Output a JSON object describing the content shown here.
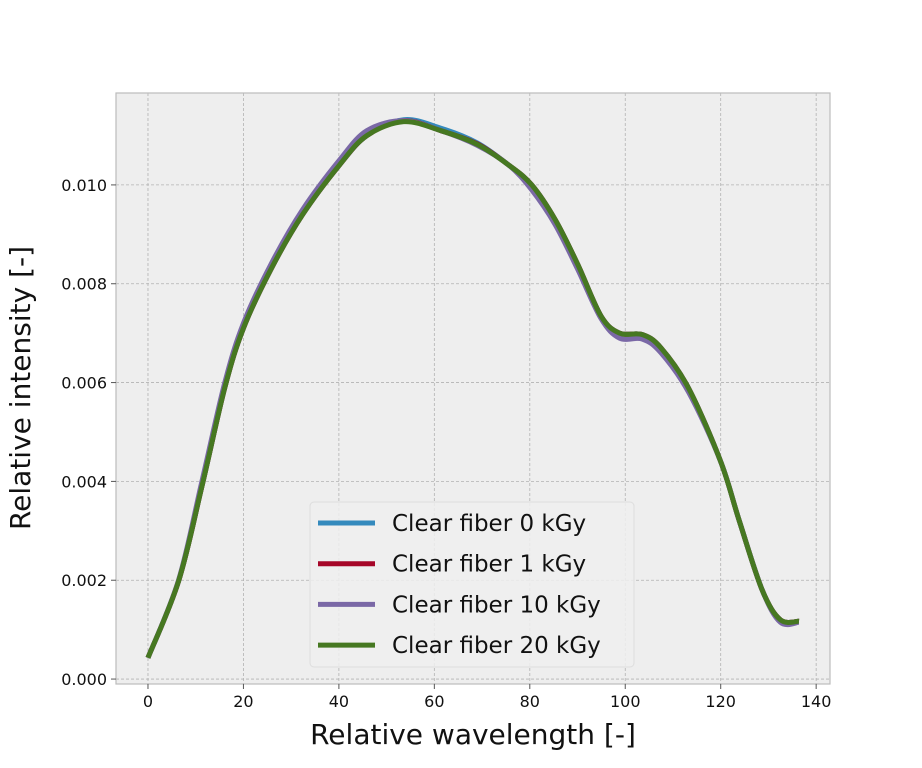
{
  "chart_data": {
    "type": "line",
    "title": "",
    "xlabel": "Relative wavelength [-]",
    "ylabel": "Relative intensity [-]",
    "xlim": [
      -6.7,
      142.9
    ],
    "ylim": [
      -0.0001,
      0.01186
    ],
    "xticks": [
      0,
      20,
      40,
      60,
      80,
      100,
      120,
      140
    ],
    "xtick_labels": [
      "0",
      "20",
      "40",
      "60",
      "80",
      "100",
      "120",
      "140"
    ],
    "yticks": [
      0,
      0.002,
      0.004,
      0.006,
      0.008,
      0.01
    ],
    "ytick_labels": [
      "0.000",
      "0.002",
      "0.004",
      "0.006",
      "0.008",
      "0.010"
    ],
    "grid": true,
    "legend_placement": "lower-center",
    "background_color": "#eeeeee",
    "x": [
      0,
      6.4,
      11.3,
      16.1,
      20,
      25.8,
      32.4,
      40.1,
      45.9,
      53.6,
      61.3,
      69,
      75.6,
      80.4,
      85.3,
      90,
      94.9,
      98.8,
      103.6,
      107.5,
      113.3,
      120,
      123.9,
      128.7,
      132.5,
      136.4
    ],
    "series": [
      {
        "name": "Clear fiber 0 kGy",
        "color": "#348abd",
        "values": [
          0.00043,
          0.00198,
          0.0039,
          0.0059,
          0.0071,
          0.0083,
          0.0094,
          0.0104,
          0.011,
          0.01132,
          0.01115,
          0.01085,
          0.0104,
          0.01,
          0.0093,
          0.0084,
          0.00735,
          0.007,
          0.00697,
          0.0067,
          0.00588,
          0.0044,
          0.0032,
          0.0018,
          0.0012,
          0.00117
        ]
      },
      {
        "name": "Clear fiber 1 kGy",
        "color": "#a60628",
        "values": [
          0.00043,
          0.00198,
          0.0039,
          0.0059,
          0.0071,
          0.0083,
          0.0094,
          0.0104,
          0.011,
          0.0113,
          0.0111,
          0.01083,
          0.0104,
          0.01,
          0.0093,
          0.0084,
          0.00735,
          0.007,
          0.00697,
          0.0067,
          0.00588,
          0.0044,
          0.0032,
          0.0018,
          0.0012,
          0.00117
        ]
      },
      {
        "name": "Clear fiber 10 kGy",
        "color": "#7a68a6",
        "values": [
          0.00043,
          0.002,
          0.004,
          0.006,
          0.0072,
          0.0084,
          0.0095,
          0.0105,
          0.0111,
          0.0113,
          0.0111,
          0.0108,
          0.0104,
          0.0099,
          0.0092,
          0.0083,
          0.0073,
          0.0069,
          0.00688,
          0.0066,
          0.0058,
          0.0044,
          0.0032,
          0.0018,
          0.00115,
          0.00115
        ]
      },
      {
        "name": "Clear fiber 20 kGy",
        "color": "#467821",
        "values": [
          0.00043,
          0.00198,
          0.0039,
          0.0059,
          0.0071,
          0.0083,
          0.0094,
          0.0104,
          0.011,
          0.01128,
          0.0111,
          0.01082,
          0.0104,
          0.01,
          0.0093,
          0.0084,
          0.00735,
          0.007,
          0.00697,
          0.0067,
          0.00588,
          0.0044,
          0.0032,
          0.0018,
          0.0012,
          0.00117
        ]
      }
    ]
  }
}
